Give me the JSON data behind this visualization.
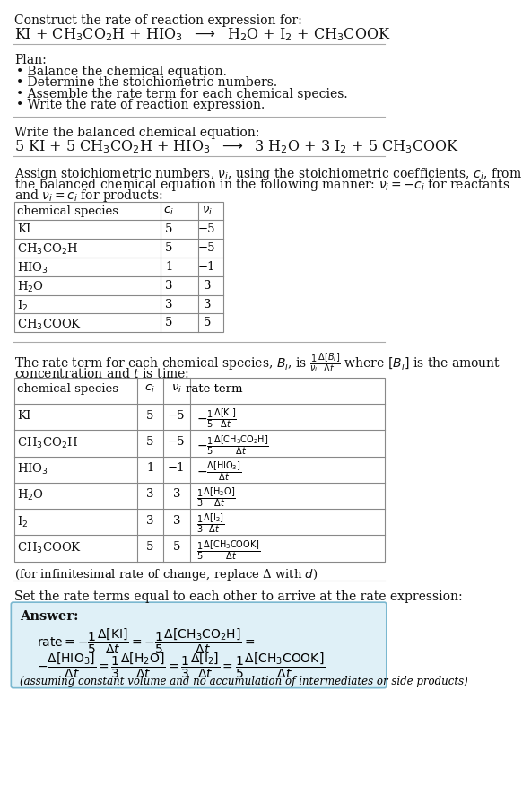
{
  "bg_color": "#ffffff",
  "text_color": "#000000",
  "title_line1": "Construct the rate of reaction expression for:",
  "reaction_unbalanced": "KI + CH$_3$CO$_2$H + HIO$_3$  $\\longrightarrow$  H$_2$O + I$_2$ + CH$_3$COOK",
  "plan_header": "Plan:",
  "plan_items": [
    "\\textbullet  Balance the chemical equation.",
    "\\textbullet  Determine the stoichiometric numbers.",
    "\\textbullet  Assemble the rate term for each chemical species.",
    "\\textbullet  Write the rate of reaction expression."
  ],
  "plan_items_plain": [
    "• Balance the chemical equation.",
    "• Determine the stoichiometric numbers.",
    "• Assemble the rate term for each chemical species.",
    "• Write the rate of reaction expression."
  ],
  "balanced_header": "Write the balanced chemical equation:",
  "reaction_balanced": "5 KI + 5 CH$_3$CO$_2$H + HIO$_3$  $\\longrightarrow$  3 H$_2$O + 3 I$_2$ + 5 CH$_3$COOK",
  "stoich_intro_lines": [
    "Assign stoichiometric numbers, $\\nu_i$, using the stoichiometric coefficients, $c_i$, from",
    "the balanced chemical equation in the following manner: $\\nu_i = -c_i$ for reactants",
    "and $\\nu_i = c_i$ for products:"
  ],
  "table1_headers": [
    "chemical species",
    "$c_i$",
    "$\\nu_i$"
  ],
  "table1_rows": [
    [
      "KI",
      "5",
      "−5"
    ],
    [
      "CH$_3$CO$_2$H",
      "5",
      "−5"
    ],
    [
      "HIO$_3$",
      "1",
      "−1"
    ],
    [
      "H$_2$O",
      "3",
      "3"
    ],
    [
      "I$_2$",
      "3",
      "3"
    ],
    [
      "CH$_3$COOK",
      "5",
      "5"
    ]
  ],
  "rate_term_intro1": "The rate term for each chemical species, $B_i$, is $\\frac{1}{\\nu_i}\\frac{\\Delta[B_i]}{\\Delta t}$ where $[B_i]$ is the amount",
  "rate_term_intro2": "concentration and $t$ is time:",
  "table2_headers": [
    "chemical species",
    "$c_i$",
    "$\\nu_i$",
    "rate term"
  ],
  "table2_rows": [
    [
      "KI",
      "5",
      "−5",
      "$-\\frac{1}{5}\\frac{\\Delta[\\mathrm{KI}]}{\\Delta t}$"
    ],
    [
      "CH$_3$CO$_2$H",
      "5",
      "−5",
      "$-\\frac{1}{5}\\frac{\\Delta[\\mathrm{CH_3CO_2H}]}{\\Delta t}$"
    ],
    [
      "HIO$_3$",
      "1",
      "−1",
      "$-\\frac{\\Delta[\\mathrm{HIO_3}]}{\\Delta t}$"
    ],
    [
      "H$_2$O",
      "3",
      "3",
      "$\\frac{1}{3}\\frac{\\Delta[\\mathrm{H_2O}]}{\\Delta t}$"
    ],
    [
      "I$_2$",
      "3",
      "3",
      "$\\frac{1}{3}\\frac{\\Delta[\\mathrm{I_2}]}{\\Delta t}$"
    ],
    [
      "CH$_3$COOK",
      "5",
      "5",
      "$\\frac{1}{5}\\frac{\\Delta[\\mathrm{CH_3COOK}]}{\\Delta t}$"
    ]
  ],
  "infinitesimal_note": "(for infinitesimal rate of change, replace Δ with $d$)",
  "set_rate_text": "Set the rate terms equal to each other to arrive at the rate expression:",
  "answer_box_color": "#dff0f7",
  "answer_box_border": "#7ab8d0",
  "answer_label": "Answer:",
  "answer_line1": "$\\mathrm{rate} = -\\dfrac{1}{5}\\dfrac{\\Delta[\\mathrm{KI}]}{\\Delta t} = -\\dfrac{1}{5}\\dfrac{\\Delta[\\mathrm{CH_3CO_2H}]}{\\Delta t} =$",
  "answer_line2": "$-\\dfrac{\\Delta[\\mathrm{HIO_3}]}{\\Delta t} = \\dfrac{1}{3}\\dfrac{\\Delta[\\mathrm{H_2O}]}{\\Delta t} = \\dfrac{1}{3}\\dfrac{\\Delta[\\mathrm{I_2}]}{\\Delta t} = \\dfrac{1}{5}\\dfrac{\\Delta[\\mathrm{CH_3COOK}]}{\\Delta t}$",
  "answer_footnote": "(assuming constant volume and no accumulation of intermediates or side products)"
}
